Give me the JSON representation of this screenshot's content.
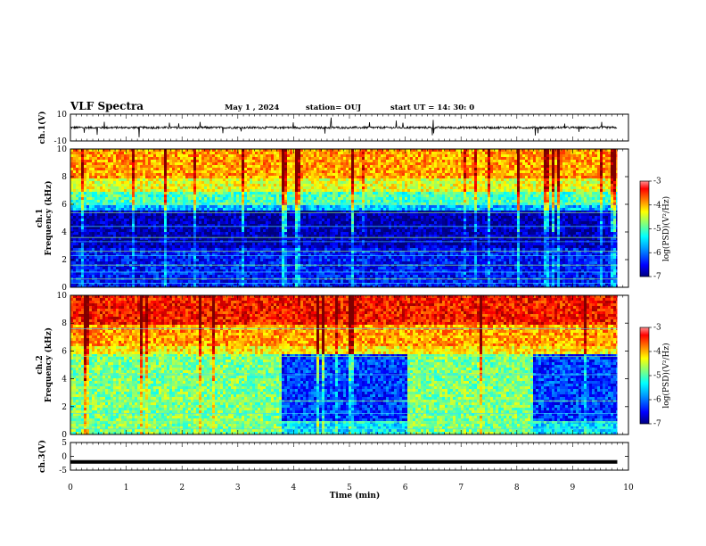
{
  "header": {
    "title": "VLF Spectra",
    "date": "May 1  , 2024",
    "station": "station= OUJ",
    "start": "start  UT  =   14: 30: 0"
  },
  "chart_data": [
    {
      "type": "line",
      "id": "ch1-waveform",
      "ylabel": "ch.1(V)",
      "ylim": [
        -10,
        10
      ],
      "y_ticks": [
        "10",
        "-10"
      ],
      "x_range": [
        0,
        10
      ],
      "data_x_max": 9.8,
      "baseline": 0,
      "line_color": "#000000"
    },
    {
      "type": "heatmap",
      "id": "ch1-spectrogram",
      "ylabel": [
        "ch.1",
        "Frequency (kHz)"
      ],
      "ylim": [
        0,
        10
      ],
      "y_ticks": [
        "0",
        "2",
        "4",
        "6",
        "8",
        "10"
      ],
      "x_range": [
        0,
        10
      ],
      "data_x_max": 9.8,
      "colorbar": {
        "label": "log(PSD)(V²/Hz)",
        "range": [
          -7,
          -3
        ],
        "ticks": [
          "-3",
          "-4",
          "-5",
          "-6",
          "-7"
        ]
      }
    },
    {
      "type": "heatmap",
      "id": "ch2-spectrogram",
      "ylabel": [
        "ch.2",
        "Frequency (kHz)"
      ],
      "ylim": [
        0,
        10
      ],
      "y_ticks": [
        "0",
        "2",
        "4",
        "6",
        "8",
        "10"
      ],
      "x_range": [
        0,
        10
      ],
      "data_x_max": 9.8,
      "quiet_intervals_min": [
        [
          3.75,
          6.0
        ],
        [
          8.25,
          9.8
        ]
      ],
      "colorbar": {
        "label": "log(PSD)(V²/Hz)",
        "range": [
          -7,
          -3
        ],
        "ticks": [
          "-3",
          "-4",
          "-5",
          "-6",
          "-7"
        ]
      }
    },
    {
      "type": "line",
      "id": "ch3-waveform",
      "ylabel": "ch.3(V)",
      "ylim": [
        -5,
        5
      ],
      "y_ticks": [
        "5",
        "0",
        "-5"
      ],
      "x_range": [
        0,
        10
      ],
      "data_x_max": 9.8,
      "baseline": -2,
      "line_color": "#000000"
    }
  ],
  "x_axis": {
    "label": "Time  (min)",
    "ticks": [
      "0",
      "1",
      "2",
      "3",
      "4",
      "5",
      "6",
      "7",
      "8",
      "9",
      "10"
    ]
  },
  "colormap": [
    "#00007f",
    "#0000ff",
    "#007fff",
    "#00ffff",
    "#7fff7f",
    "#ffff00",
    "#ff7f00",
    "#ff0000",
    "#7f0000"
  ]
}
